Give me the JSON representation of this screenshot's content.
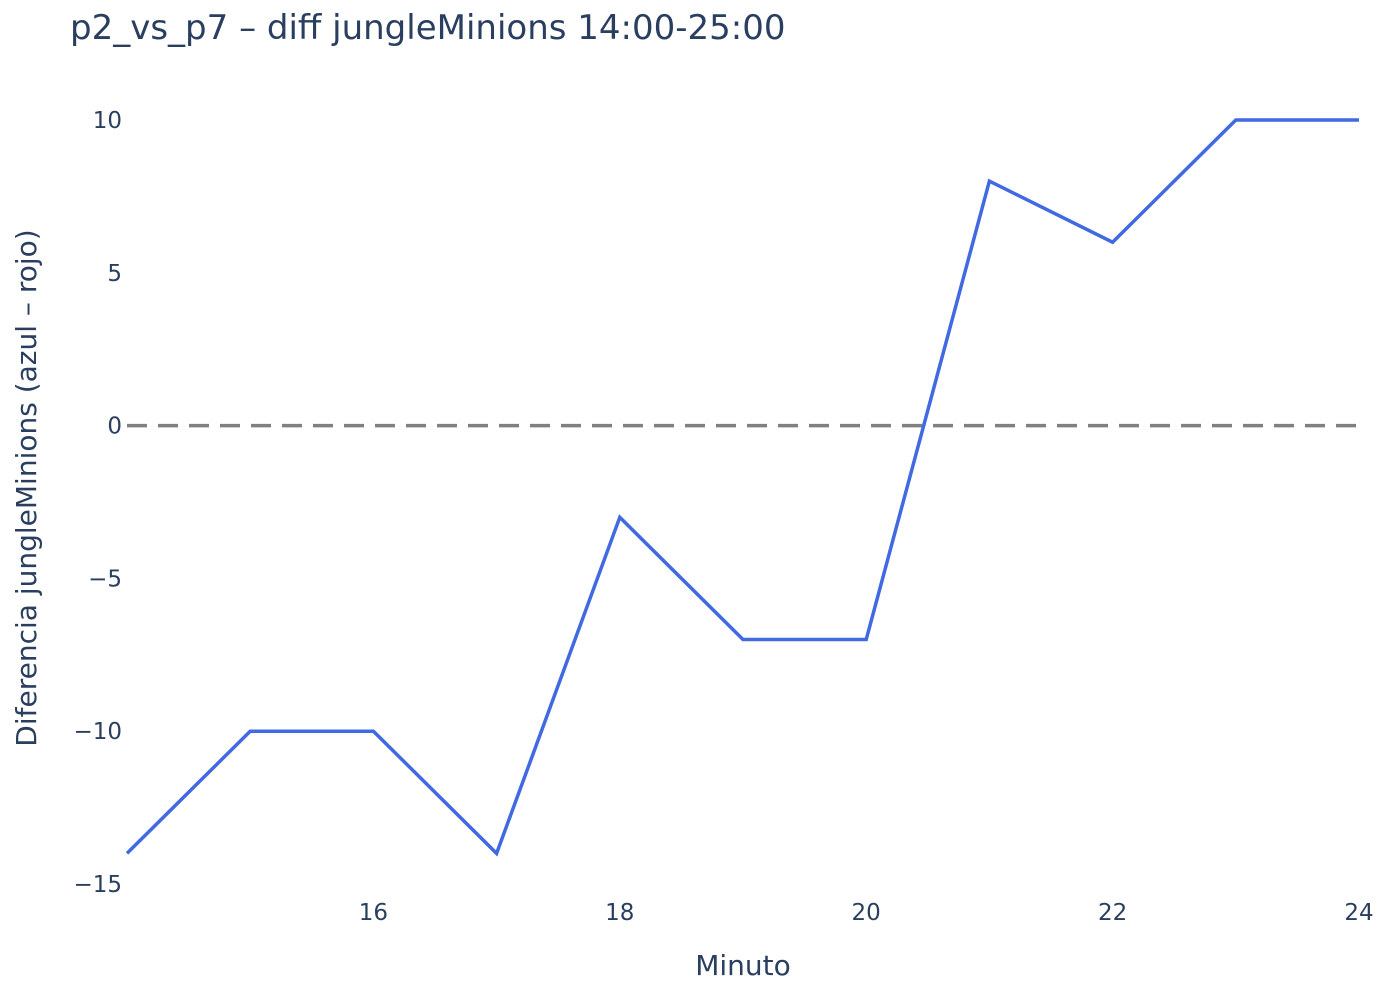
{
  "chart_data": {
    "type": "line",
    "title": "p2_vs_p7 – diff jungleMinions 14:00-25:00",
    "xlabel": "Minuto",
    "ylabel": "Diferencia jungleMinions (azul – rojo)",
    "x": [
      14,
      15,
      16,
      17,
      18,
      19,
      20,
      21,
      22,
      23,
      24
    ],
    "series": [
      {
        "values": [
          -14,
          -10,
          -10,
          -14,
          -3,
          -7,
          -7,
          8,
          6,
          10,
          10
        ],
        "color": "#4169e1"
      }
    ],
    "xlim": [
      14,
      24
    ],
    "ylim": [
      -15,
      11
    ],
    "x_ticks": [
      16,
      18,
      20,
      22,
      24
    ],
    "y_ticks": [
      10,
      5,
      0,
      -5,
      -10,
      -15
    ],
    "y_tick_labels": [
      "10",
      "5",
      "0",
      "−5",
      "−10",
      "−15"
    ],
    "reference_line": {
      "y": 0,
      "style": "dashed",
      "color": "#808080"
    },
    "grid": false,
    "legend": "none"
  }
}
